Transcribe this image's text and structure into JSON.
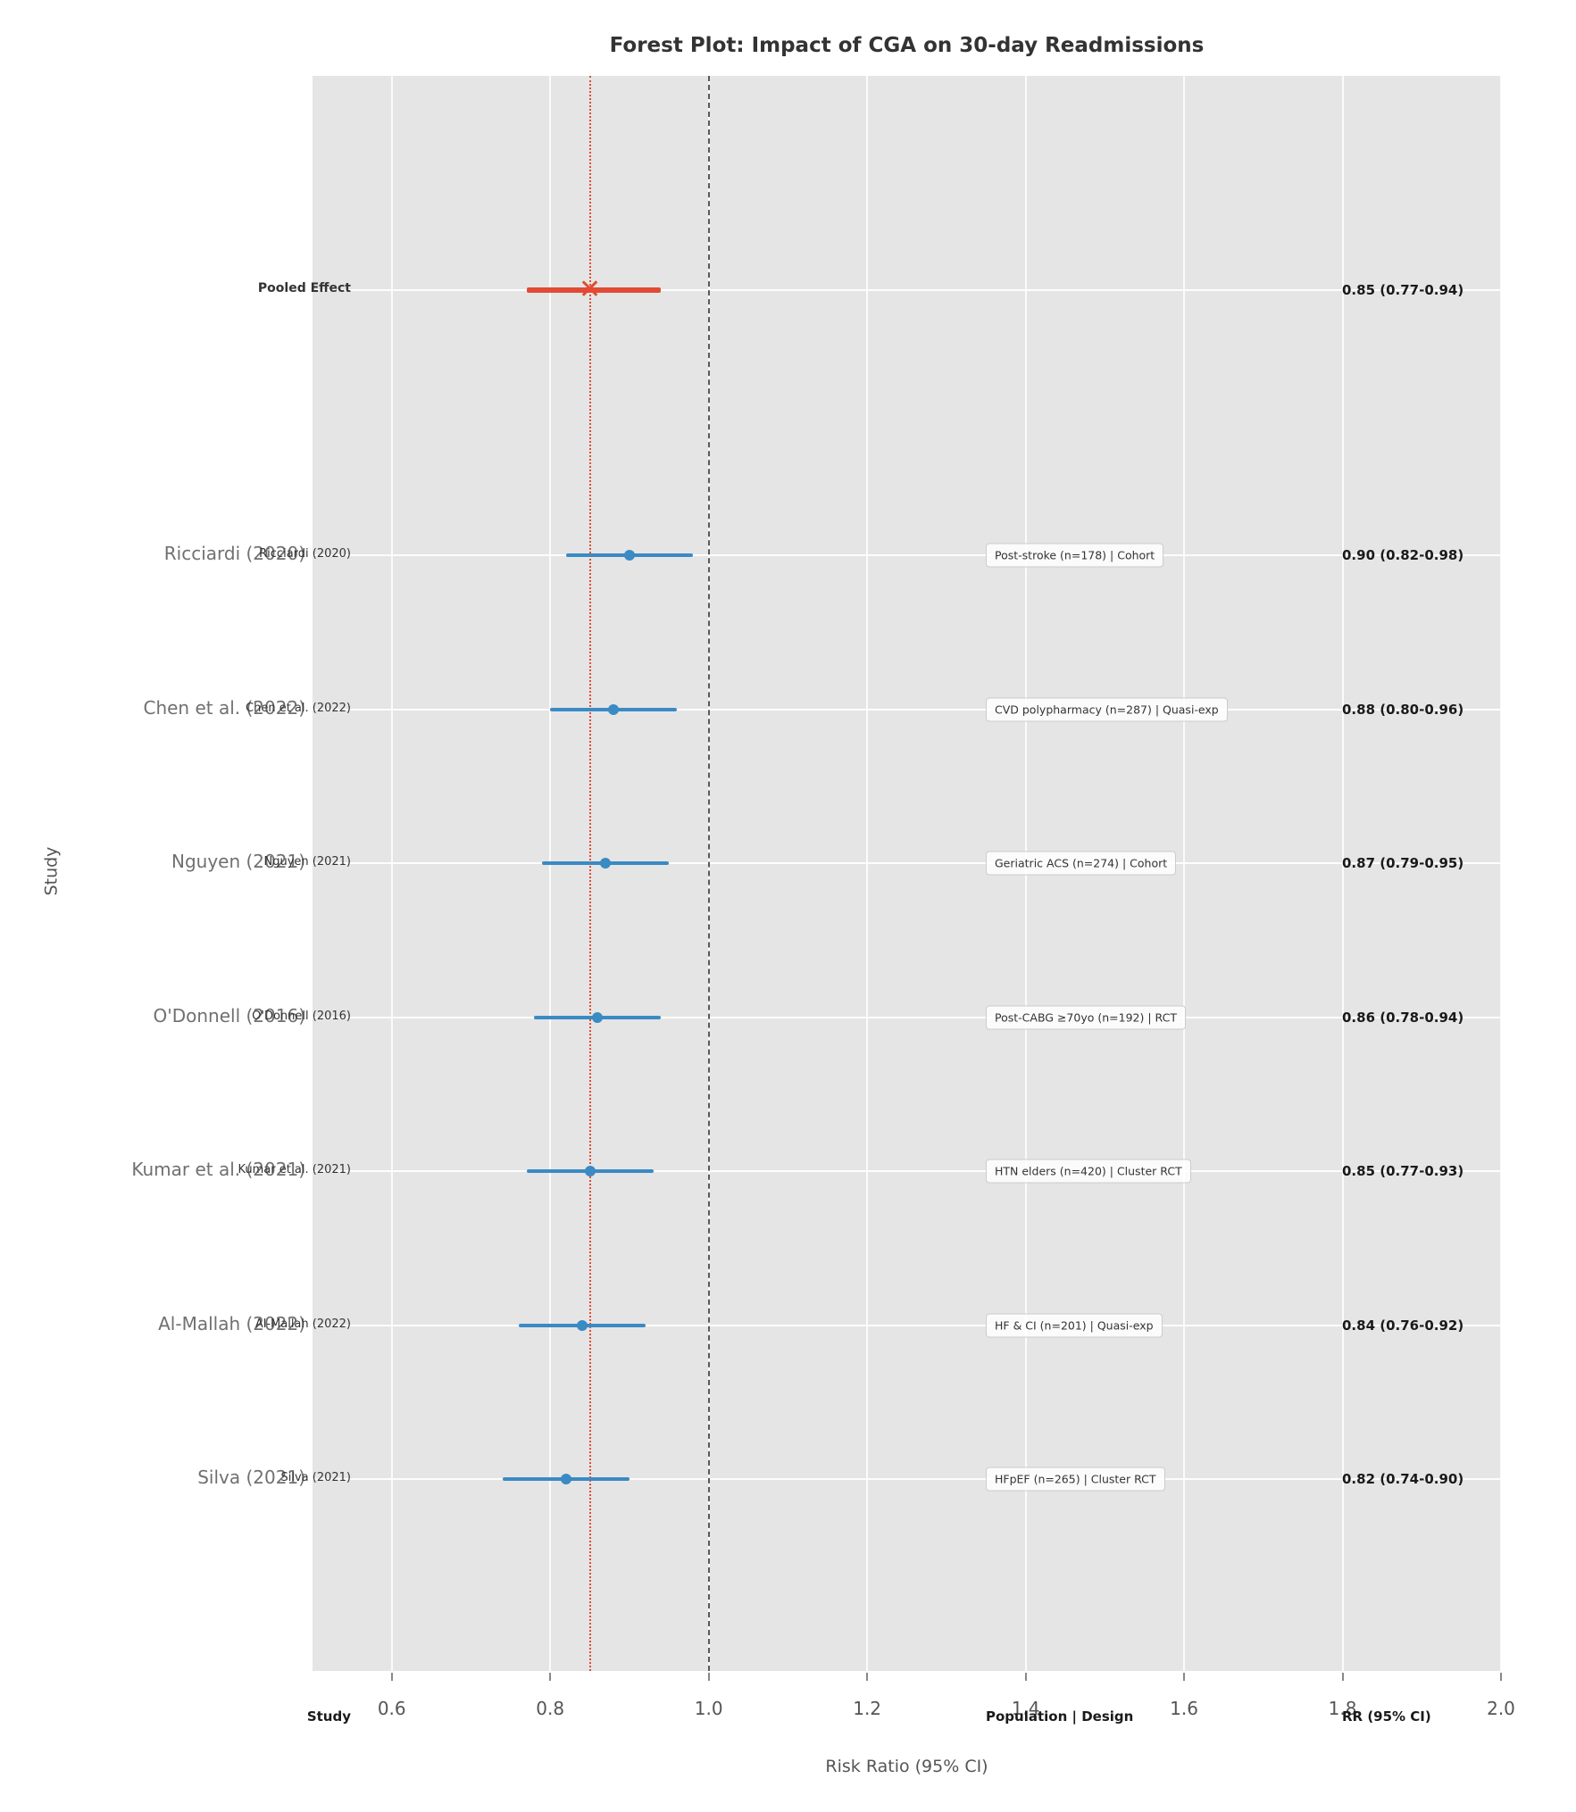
{
  "title": "Forest Plot: Impact of CGA on 30-day Readmissions",
  "chart_data": {
    "type": "forest-plot",
    "title": "Forest Plot: Impact of CGA on 30-day Readmissions",
    "xlabel": "Risk Ratio (95% CI)",
    "ylabel": "Study",
    "xlim": [
      0.5,
      2.0
    ],
    "xticks": [
      "0.6",
      "0.8",
      "1.0",
      "1.2",
      "1.4",
      "1.6",
      "1.8",
      "2.0"
    ],
    "xtick_values": [
      0.6,
      0.8,
      1.0,
      1.2,
      1.4,
      1.6,
      1.8,
      2.0
    ],
    "grid": true,
    "reference_line_x": 1.0,
    "pooled_line_x": 0.85,
    "column_headers": {
      "study": "Study",
      "population": "Population | Design",
      "rr": "RR (95% CI)"
    },
    "pooled": {
      "label": "Pooled Effect",
      "est": 0.85,
      "lo": 0.77,
      "hi": 0.94,
      "rr_text": "0.85 (0.77-0.94)"
    },
    "studies": [
      {
        "label": "Ricciardi (2020)",
        "population": "Post-stroke (n=178) | Cohort",
        "est": 0.9,
        "lo": 0.82,
        "hi": 0.98,
        "rr_text": "0.90 (0.82-0.98)"
      },
      {
        "label": "Chen et al. (2022)",
        "population": "CVD polypharmacy (n=287) | Quasi-exp",
        "est": 0.88,
        "lo": 0.8,
        "hi": 0.96,
        "rr_text": "0.88 (0.80-0.96)"
      },
      {
        "label": "Nguyen (2021)",
        "population": "Geriatric ACS (n=274) | Cohort",
        "est": 0.87,
        "lo": 0.79,
        "hi": 0.95,
        "rr_text": "0.87 (0.79-0.95)"
      },
      {
        "label": "O'Donnell (2016)",
        "population": "Post-CABG ≥70yo (n=192) | RCT",
        "est": 0.86,
        "lo": 0.78,
        "hi": 0.94,
        "rr_text": "0.86 (0.78-0.94)"
      },
      {
        "label": "Kumar et al. (2021)",
        "population": "HTN elders (n=420) | Cluster RCT",
        "est": 0.85,
        "lo": 0.77,
        "hi": 0.93,
        "rr_text": "0.85 (0.77-0.93)"
      },
      {
        "label": "Al-Mallah (2022)",
        "population": "HF & CI (n=201) | Quasi-exp",
        "est": 0.84,
        "lo": 0.76,
        "hi": 0.92,
        "rr_text": "0.84 (0.76-0.92)"
      },
      {
        "label": "Silva (2021)",
        "population": "HFpEF (n=265) | Cluster RCT",
        "est": 0.82,
        "lo": 0.74,
        "hi": 0.9,
        "rr_text": "0.82 (0.74-0.90)"
      }
    ],
    "colors": {
      "study_marker": "#3a8ac4",
      "pooled_marker": "#E24A33",
      "reference_line": "#5a5a5a",
      "pooled_line": "#E24A33",
      "plot_background": "#e5e5e5",
      "gridline": "#ffffff"
    },
    "legend_position": "none"
  }
}
